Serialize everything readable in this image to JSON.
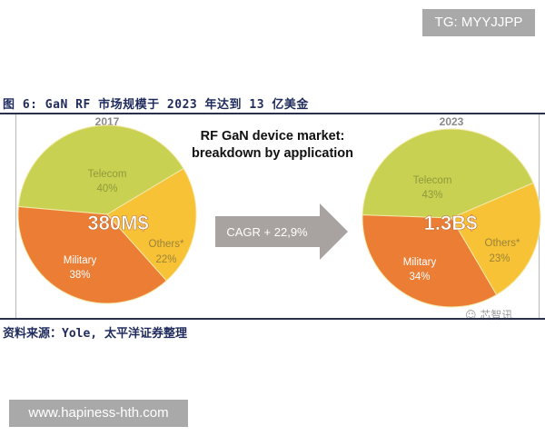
{
  "watermarks": {
    "top": "TG: MYYJJPP",
    "bottom": "www.hapiness-hth.com"
  },
  "figure": {
    "title": "图 6: GaN RF 市场规模于 2023 年达到 13 亿美金",
    "source": "资料来源：Yole, 太平洋证券整理",
    "logo_text": "芯智讯"
  },
  "colors": {
    "telecom": "#c9d153",
    "military": "#ec7d35",
    "others": "#f8c236",
    "arrow": "#a8a3a0",
    "telecom_text": "#8f9a3a",
    "others_text": "#9a8338",
    "military_text": "#ffffff"
  },
  "chart_data": {
    "type": "pie",
    "title": "RF GaN device market: breakdown by application",
    "heading_lines": [
      "RF GaN device market:",
      "breakdown by application"
    ],
    "annotation": "CAGR + 22,9%",
    "charts": [
      {
        "year": "2017",
        "total": "380M$",
        "slices": [
          {
            "label": "Telecom",
            "value": 40,
            "pct": "40%"
          },
          {
            "label": "Others*",
            "value": 22,
            "pct": "22%"
          },
          {
            "label": "Military",
            "value": 38,
            "pct": "38%"
          }
        ]
      },
      {
        "year": "2023",
        "total": "1.3B$",
        "slices": [
          {
            "label": "Telecom",
            "value": 43,
            "pct": "43%"
          },
          {
            "label": "Others*",
            "value": 23,
            "pct": "23%"
          },
          {
            "label": "Military",
            "value": 34,
            "pct": "34%"
          }
        ]
      }
    ]
  }
}
